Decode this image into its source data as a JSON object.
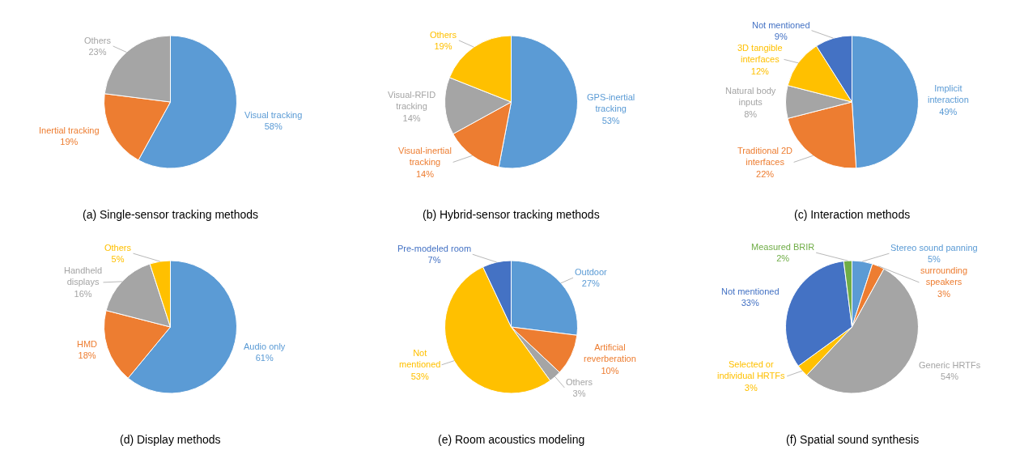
{
  "chart_data": [
    {
      "type": "pie",
      "title": "(a) Single-sensor tracking methods",
      "categories": [
        "Visual tracking",
        "Inertial tracking",
        "Others"
      ],
      "values": [
        58,
        19,
        23
      ],
      "value_labels": [
        "58%",
        "19%",
        "23%"
      ],
      "colors": [
        "#5b9bd5",
        "#ed7d31",
        "#a5a5a5"
      ],
      "legend": false
    },
    {
      "type": "pie",
      "title": "(b) Hybrid-sensor tracking methods",
      "categories": [
        "GPS-inertial\ntracking",
        "Visual-inertial\ntracking",
        "Visual-RFID\ntracking",
        "Others"
      ],
      "values": [
        53,
        14,
        14,
        19
      ],
      "value_labels": [
        "53%",
        "14%",
        "14%",
        "19%"
      ],
      "colors": [
        "#5b9bd5",
        "#ed7d31",
        "#a5a5a5",
        "#ffc000"
      ],
      "legend": false
    },
    {
      "type": "pie",
      "title": "(c) Interaction methods",
      "categories": [
        "Implicit\ninteraction",
        "Traditional 2D\ninterfaces",
        "Natural body\ninputs",
        "3D tangible\ninterfaces",
        "Not mentioned"
      ],
      "values": [
        49,
        22,
        8,
        12,
        9
      ],
      "value_labels": [
        "49%",
        "22%",
        "8%",
        "12%",
        "9%"
      ],
      "colors": [
        "#5b9bd5",
        "#ed7d31",
        "#a5a5a5",
        "#ffc000",
        "#4472c4"
      ],
      "legend": false
    },
    {
      "type": "pie",
      "title": "(d) Display methods",
      "categories": [
        "Audio only",
        "HMD",
        "Handheld\ndisplays",
        "Others"
      ],
      "values": [
        61,
        18,
        16,
        5
      ],
      "value_labels": [
        "61%",
        "18%",
        "16%",
        "5%"
      ],
      "colors": [
        "#5b9bd5",
        "#ed7d31",
        "#a5a5a5",
        "#ffc000"
      ],
      "legend": false
    },
    {
      "type": "pie",
      "title": "(e) Room acoustics modeling",
      "categories": [
        "Outdoor",
        "Artificial\nreverberation",
        "Others",
        "Not\nmentioned",
        "Pre-modeled room"
      ],
      "values": [
        27,
        10,
        3,
        53,
        7
      ],
      "value_labels": [
        "27%",
        "10%",
        "3%",
        "53%",
        "7%"
      ],
      "colors": [
        "#5b9bd5",
        "#ed7d31",
        "#a5a5a5",
        "#ffc000",
        "#4472c4"
      ],
      "legend": false
    },
    {
      "type": "pie",
      "title": "(f) Spatial sound synthesis",
      "categories": [
        "Stereo sound panning",
        "surrounding\nspeakers",
        "Generic HRTFs",
        "Selected or\nindividual HRTFs",
        "Not mentioned",
        "Measured BRIR"
      ],
      "values": [
        5,
        3,
        54,
        3,
        33,
        2
      ],
      "value_labels": [
        "5%",
        "3%",
        "54%",
        "3%",
        "33%",
        "2%"
      ],
      "colors": [
        "#5b9bd5",
        "#ed7d31",
        "#a5a5a5",
        "#ffc000",
        "#4472c4",
        "#70ad47"
      ],
      "legend": false
    }
  ]
}
